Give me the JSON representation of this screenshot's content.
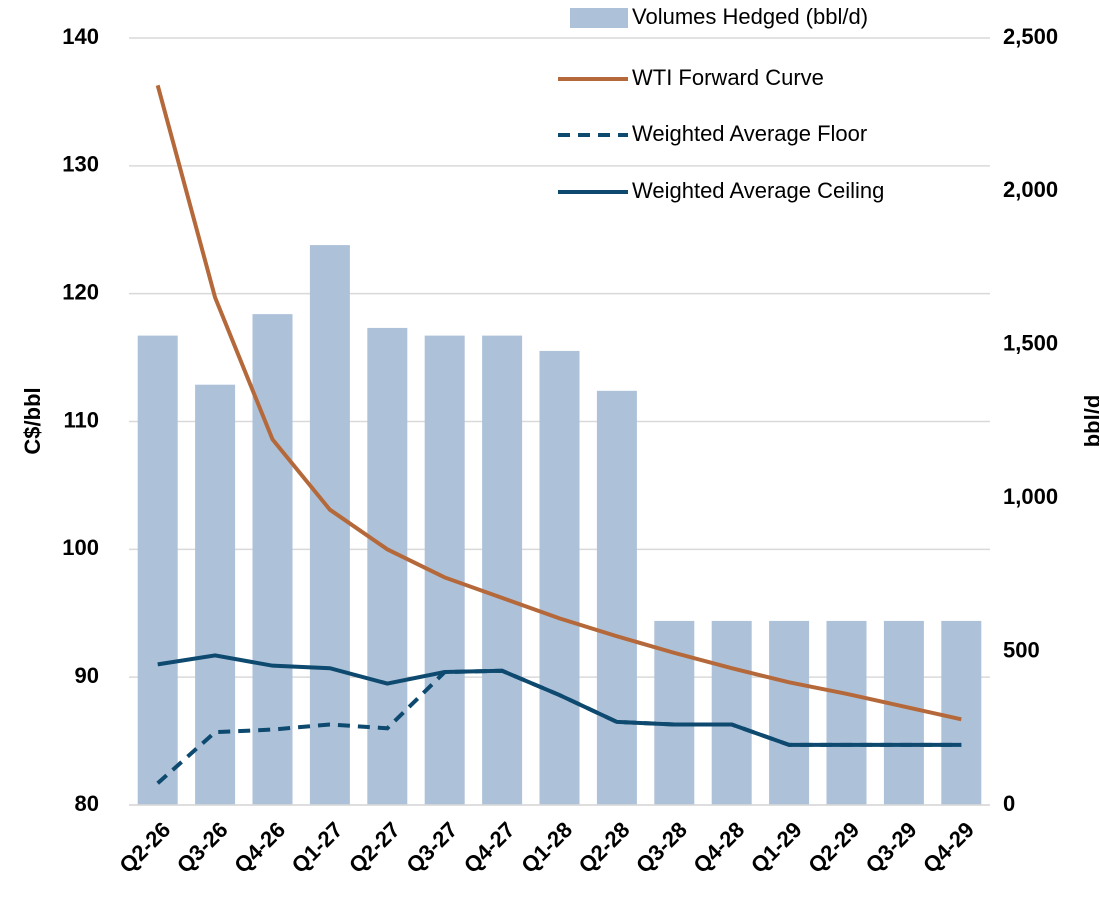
{
  "chart_data": {
    "type": "combo",
    "categories": [
      "Q2-26",
      "Q3-26",
      "Q4-26",
      "Q1-27",
      "Q2-27",
      "Q3-27",
      "Q4-27",
      "Q1-28",
      "Q2-28",
      "Q3-28",
      "Q4-28",
      "Q1-29",
      "Q2-29",
      "Q3-29",
      "Q4-29"
    ],
    "series": [
      {
        "name": "Volumes Hedged (bbl/d)",
        "type": "bar",
        "axis": "y2",
        "color": "#adc2d9",
        "values": [
          1530,
          1370,
          1600,
          1825,
          1555,
          1530,
          1530,
          1480,
          1350,
          600,
          600,
          600,
          600,
          600,
          600
        ]
      },
      {
        "name": "WTI Forward Curve",
        "type": "line",
        "color": "#b5693a",
        "values": [
          136.3,
          119.7,
          108.6,
          103.1,
          100.0,
          97.8,
          96.2,
          94.6,
          93.2,
          91.9,
          90.7,
          89.6,
          88.7,
          87.7,
          86.7
        ]
      },
      {
        "name": "Weighted Average Floor",
        "type": "line",
        "dash": true,
        "color": "#0e4a6f",
        "values": [
          81.7,
          85.7,
          85.9,
          86.3,
          86.0,
          90.4,
          90.5,
          88.6,
          86.5,
          86.3,
          86.3,
          84.7,
          84.7,
          84.7,
          84.7
        ]
      },
      {
        "name": "Weighted Average Ceiling",
        "type": "line",
        "color": "#0e4a6f",
        "values": [
          91.0,
          91.7,
          90.9,
          90.7,
          89.5,
          90.4,
          90.5,
          88.6,
          86.5,
          86.3,
          86.3,
          84.7,
          84.7,
          84.7,
          84.7
        ]
      }
    ],
    "ylabel": "C$/bbl",
    "y2label": "bbl/d",
    "ylim": [
      80,
      140
    ],
    "yticks": [
      80,
      90,
      100,
      110,
      120,
      130,
      140
    ],
    "y2lim": [
      0,
      2500
    ],
    "y2ticks": [
      0,
      {
        "value": 500,
        "label": "500"
      },
      {
        "value": 1000,
        "label": "1,000"
      },
      {
        "value": 1500,
        "label": "1,500"
      },
      {
        "value": 2000,
        "label": "2,000"
      },
      {
        "value": 2500,
        "label": "2,500"
      }
    ],
    "grid": true,
    "legend": "top-right"
  }
}
